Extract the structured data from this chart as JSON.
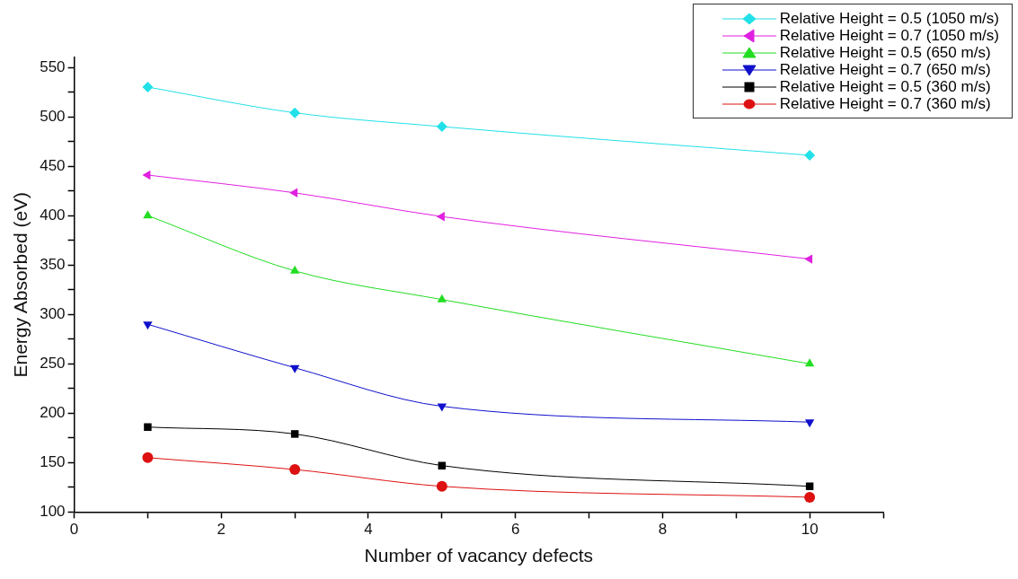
{
  "chart_data": {
    "type": "line",
    "xlabel": "Number of vacancy defects",
    "ylabel": "Energy Absorbed (eV)",
    "x": [
      1,
      3,
      5,
      10
    ],
    "xlim": [
      0,
      11
    ],
    "xticks": [
      0,
      {
        "value": 1,
        "label": null
      },
      2,
      {
        "value": 3,
        "label": null
      },
      4,
      {
        "value": 5,
        "label": null
      },
      6,
      {
        "value": 7,
        "label": null
      },
      8,
      {
        "value": 9,
        "label": null
      },
      10,
      {
        "value": 11,
        "label": null
      }
    ],
    "ylim": [
      100,
      560
    ],
    "yticks": [
      100,
      {
        "value": 125,
        "label": null
      },
      150,
      {
        "value": 175,
        "label": null
      },
      200,
      {
        "value": 225,
        "label": null
      },
      250,
      {
        "value": 275,
        "label": null
      },
      300,
      {
        "value": 325,
        "label": null
      },
      350,
      {
        "value": 375,
        "label": null
      },
      400,
      {
        "value": 425,
        "label": null
      },
      450,
      {
        "value": 475,
        "label": null
      },
      500,
      {
        "value": 525,
        "label": null
      },
      550
    ],
    "legend": "top right",
    "line_style": "solid",
    "series": [
      {
        "name": "Relative Height = 0.5 (1050 m/s)",
        "color": "#22e0e8",
        "marker": "diamond",
        "values": [
          530,
          504,
          490,
          461
        ]
      },
      {
        "name": "Relative Height = 0.7 (1050 m/s)",
        "color": "#e020e0",
        "marker": "triangle-left",
        "values": [
          441,
          423,
          399,
          356
        ]
      },
      {
        "name": "Relative Height = 0.5 (650 m/s)",
        "color": "#22dd22",
        "marker": "triangle",
        "values": [
          400,
          344,
          315,
          250
        ]
      },
      {
        "name": "Relative Height = 0.7 (650 m/s)",
        "color": "#1010cc",
        "marker": "triangle-down",
        "values": [
          290,
          246,
          207,
          191
        ]
      },
      {
        "name": "Relative Height = 0.5 (360 m/s)",
        "color": "#000000",
        "marker": "square",
        "values": [
          186,
          179,
          147,
          126
        ]
      },
      {
        "name": "Relative Height = 0.7 (360 m/s)",
        "color": "#dd1111",
        "marker": "circle",
        "values": [
          155,
          143,
          126,
          115
        ]
      }
    ]
  }
}
